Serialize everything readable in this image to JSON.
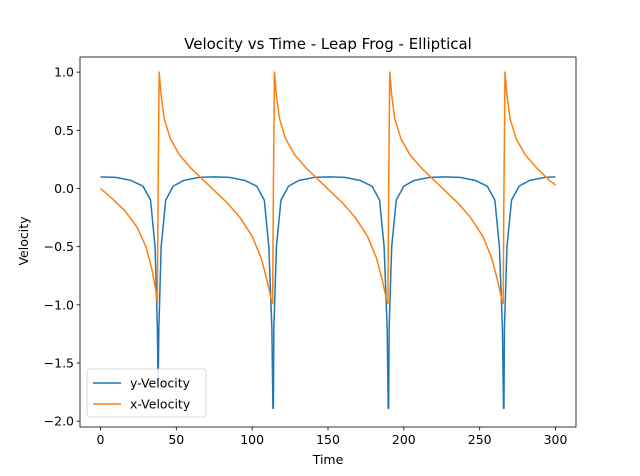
{
  "chart_data": {
    "type": "line",
    "title": "Velocity vs Time - Leap Frog - Elliptical",
    "xlabel": "Time",
    "ylabel": "Velocity",
    "xlim": [
      -13.5,
      313.5
    ],
    "ylim": [
      -2.05,
      1.13
    ],
    "x_ticks": [
      0,
      50,
      100,
      150,
      200,
      250,
      300
    ],
    "x_tick_labels": [
      "0",
      "50",
      "100",
      "150",
      "200",
      "250",
      "300"
    ],
    "y_ticks": [
      1.0,
      0.5,
      0.0,
      -0.5,
      -1.0,
      -1.5,
      -2.0
    ],
    "y_tick_labels": [
      "1.0",
      "0.5",
      "0.0",
      "−0.5",
      "−1.0",
      "−1.5",
      "−2.0"
    ],
    "grid": false,
    "legend_position": "lower-left",
    "series": [
      {
        "name": "y-Velocity",
        "color": "#1f77b4",
        "x": [
          0,
          10,
          20,
          28,
          33,
          36,
          37.5,
          38,
          38.5,
          40,
          43,
          48,
          55,
          65,
          75,
          85,
          95,
          103,
          108,
          111,
          113,
          113.7,
          114,
          114.3,
          116,
          119,
          124,
          131,
          141,
          151,
          161,
          171,
          179,
          184,
          187,
          189,
          189.7,
          190,
          190.3,
          192,
          195,
          200,
          207,
          217,
          227,
          237,
          247,
          255,
          260,
          263,
          265,
          265.7,
          266,
          266.3,
          268,
          271,
          276,
          283,
          293,
          300
        ],
        "y": [
          0.1,
          0.095,
          0.07,
          0.02,
          -0.1,
          -0.5,
          -1.2,
          -1.72,
          -1.2,
          -0.5,
          -0.1,
          0.02,
          0.07,
          0.095,
          0.1,
          0.095,
          0.07,
          0.02,
          -0.1,
          -0.5,
          -1.2,
          -1.89,
          -1.89,
          -1.2,
          -0.5,
          -0.1,
          0.02,
          0.07,
          0.095,
          0.1,
          0.095,
          0.07,
          0.02,
          -0.1,
          -0.5,
          -1.2,
          -1.89,
          -1.89,
          -1.2,
          -0.5,
          -0.1,
          0.02,
          0.07,
          0.095,
          0.1,
          0.095,
          0.07,
          0.02,
          -0.1,
          -0.5,
          -1.2,
          -1.89,
          -1.89,
          -1.2,
          -0.5,
          -0.1,
          0.02,
          0.07,
          0.095,
          0.1
        ]
      },
      {
        "name": "x-Velocity",
        "color": "#ff7f0e",
        "x": [
          0,
          8,
          16,
          24,
          30,
          34,
          36.5,
          37.5,
          38,
          38.7,
          40,
          42,
          46,
          52,
          60,
          68,
          76,
          84,
          92,
          100,
          106,
          110,
          112.5,
          113.5,
          114,
          114.7,
          116,
          118,
          122,
          128,
          136,
          144,
          152,
          160,
          168,
          176,
          182,
          186,
          188.5,
          189.5,
          190,
          190.7,
          192,
          194,
          198,
          204,
          212,
          220,
          228,
          236,
          244,
          252,
          258,
          262,
          264.5,
          265.5,
          266,
          266.7,
          268,
          270,
          274,
          280,
          288,
          296,
          300
        ],
        "y": [
          0.0,
          -0.09,
          -0.19,
          -0.33,
          -0.5,
          -0.7,
          -0.88,
          -0.98,
          0.0,
          1.0,
          0.8,
          0.6,
          0.43,
          0.29,
          0.17,
          0.07,
          -0.03,
          -0.13,
          -0.25,
          -0.41,
          -0.6,
          -0.8,
          -0.95,
          -0.99,
          0.0,
          1.0,
          0.8,
          0.6,
          0.43,
          0.29,
          0.17,
          0.07,
          -0.03,
          -0.13,
          -0.25,
          -0.41,
          -0.6,
          -0.8,
          -0.95,
          -0.99,
          0.0,
          1.0,
          0.8,
          0.6,
          0.43,
          0.29,
          0.17,
          0.07,
          -0.03,
          -0.13,
          -0.25,
          -0.41,
          -0.6,
          -0.8,
          -0.95,
          -0.99,
          0.0,
          1.0,
          0.8,
          0.6,
          0.43,
          0.29,
          0.17,
          0.07,
          0.03
        ]
      }
    ]
  }
}
